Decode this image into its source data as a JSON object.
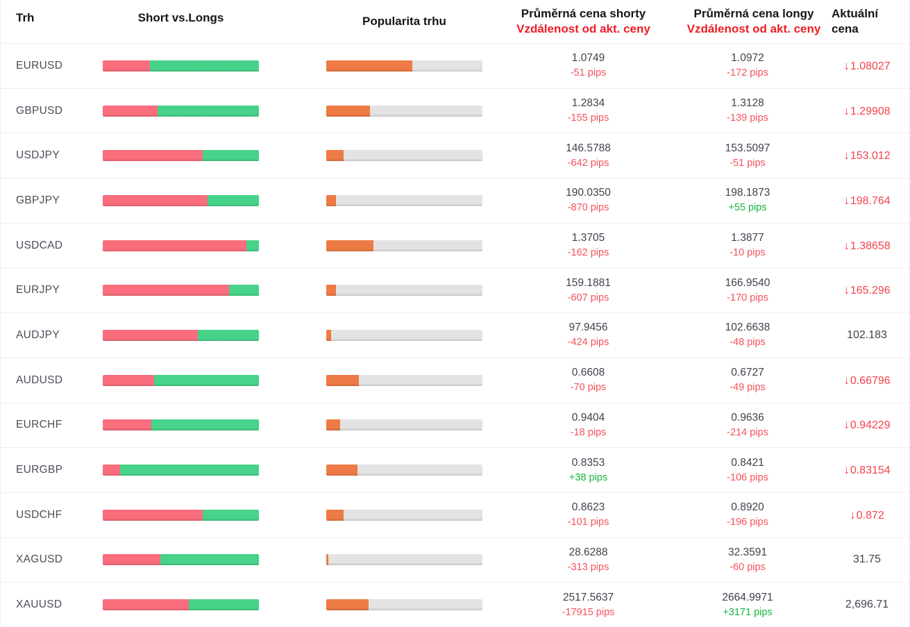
{
  "header": {
    "market": "Trh",
    "short_vs_longs": "Short vs.Longs",
    "popularity": "Popularita trhu",
    "avg_short_title": "Průměrná cena shorty",
    "avg_short_subtitle": "Vzdálenost od akt. ceny",
    "avg_long_title": "Průměrná cena longy",
    "avg_long_subtitle": "Vzdálenost od akt. ceny",
    "current_line1": "Aktuální",
    "current_line2": "cena"
  },
  "colors": {
    "short_bar": "#f96d7d",
    "long_bar": "#47d38a",
    "popularity_bar": "#ee7b45",
    "bar_track": "#e3e3e3",
    "negative_text": "#f4525a",
    "positive_text": "#17b33e",
    "header_red": "#ee1c25",
    "price_down_red": "#f4434b",
    "row_border": "#edeff4"
  },
  "icons": {
    "down_arrow": "↓"
  },
  "rows": [
    {
      "market": "EURUSD",
      "short_pct": 30,
      "popularity_pct": 55,
      "avg_short": {
        "price": "1.0749",
        "distance": "-51 pips"
      },
      "avg_long": {
        "price": "1.0972",
        "distance": "-172 pips"
      },
      "current": {
        "value": "1.08027",
        "direction": "down"
      }
    },
    {
      "market": "GBPUSD",
      "short_pct": 35,
      "popularity_pct": 28,
      "avg_short": {
        "price": "1.2834",
        "distance": "-155 pips"
      },
      "avg_long": {
        "price": "1.3128",
        "distance": "-139 pips"
      },
      "current": {
        "value": "1.29908",
        "direction": "down"
      }
    },
    {
      "market": "USDJPY",
      "short_pct": 64,
      "popularity_pct": 11,
      "avg_short": {
        "price": "146.5788",
        "distance": "-642 pips"
      },
      "avg_long": {
        "price": "153.5097",
        "distance": "-51 pips"
      },
      "current": {
        "value": "153.012",
        "direction": "down"
      }
    },
    {
      "market": "GBPJPY",
      "short_pct": 67,
      "popularity_pct": 6,
      "avg_short": {
        "price": "190.0350",
        "distance": "-870 pips"
      },
      "avg_long": {
        "price": "198.1873",
        "distance": "+55 pips"
      },
      "current": {
        "value": "198.764",
        "direction": "down"
      }
    },
    {
      "market": "USDCAD",
      "short_pct": 92,
      "popularity_pct": 30,
      "avg_short": {
        "price": "1.3705",
        "distance": "-162 pips"
      },
      "avg_long": {
        "price": "1.3877",
        "distance": "-10 pips"
      },
      "current": {
        "value": "1.38658",
        "direction": "down"
      }
    },
    {
      "market": "EURJPY",
      "short_pct": 81,
      "popularity_pct": 6,
      "avg_short": {
        "price": "159.1881",
        "distance": "-607 pips"
      },
      "avg_long": {
        "price": "166.9540",
        "distance": "-170 pips"
      },
      "current": {
        "value": "165.296",
        "direction": "down"
      }
    },
    {
      "market": "AUDJPY",
      "short_pct": 61,
      "popularity_pct": 3,
      "avg_short": {
        "price": "97.9456",
        "distance": "-424 pips"
      },
      "avg_long": {
        "price": "102.6638",
        "distance": "-48 pips"
      },
      "current": {
        "value": "102.183",
        "direction": "none"
      }
    },
    {
      "market": "AUDUSD",
      "short_pct": 33,
      "popularity_pct": 21,
      "avg_short": {
        "price": "0.6608",
        "distance": "-70 pips"
      },
      "avg_long": {
        "price": "0.6727",
        "distance": "-49 pips"
      },
      "current": {
        "value": "0.66796",
        "direction": "down"
      }
    },
    {
      "market": "EURCHF",
      "short_pct": 31,
      "popularity_pct": 9,
      "avg_short": {
        "price": "0.9404",
        "distance": "-18 pips"
      },
      "avg_long": {
        "price": "0.9636",
        "distance": "-214 pips"
      },
      "current": {
        "value": "0.94229",
        "direction": "down"
      }
    },
    {
      "market": "EURGBP",
      "short_pct": 11,
      "popularity_pct": 20,
      "avg_short": {
        "price": "0.8353",
        "distance": "+38 pips"
      },
      "avg_long": {
        "price": "0.8421",
        "distance": "-106 pips"
      },
      "current": {
        "value": "0.83154",
        "direction": "down"
      }
    },
    {
      "market": "USDCHF",
      "short_pct": 64,
      "popularity_pct": 11,
      "avg_short": {
        "price": "0.8623",
        "distance": "-101 pips"
      },
      "avg_long": {
        "price": "0.8920",
        "distance": "-196 pips"
      },
      "current": {
        "value": "0.872",
        "direction": "down"
      }
    },
    {
      "market": "XAGUSD",
      "short_pct": 37,
      "popularity_pct": 1.5,
      "avg_short": {
        "price": "28.6288",
        "distance": "-313 pips"
      },
      "avg_long": {
        "price": "32.3591",
        "distance": "-60 pips"
      },
      "current": {
        "value": "31.75",
        "direction": "none"
      }
    },
    {
      "market": "XAUUSD",
      "short_pct": 55,
      "popularity_pct": 27,
      "avg_short": {
        "price": "2517.5637",
        "distance": "-17915 pips"
      },
      "avg_long": {
        "price": "2664.9971",
        "distance": "+3171 pips"
      },
      "current": {
        "value": "2,696.71",
        "direction": "none"
      }
    }
  ]
}
